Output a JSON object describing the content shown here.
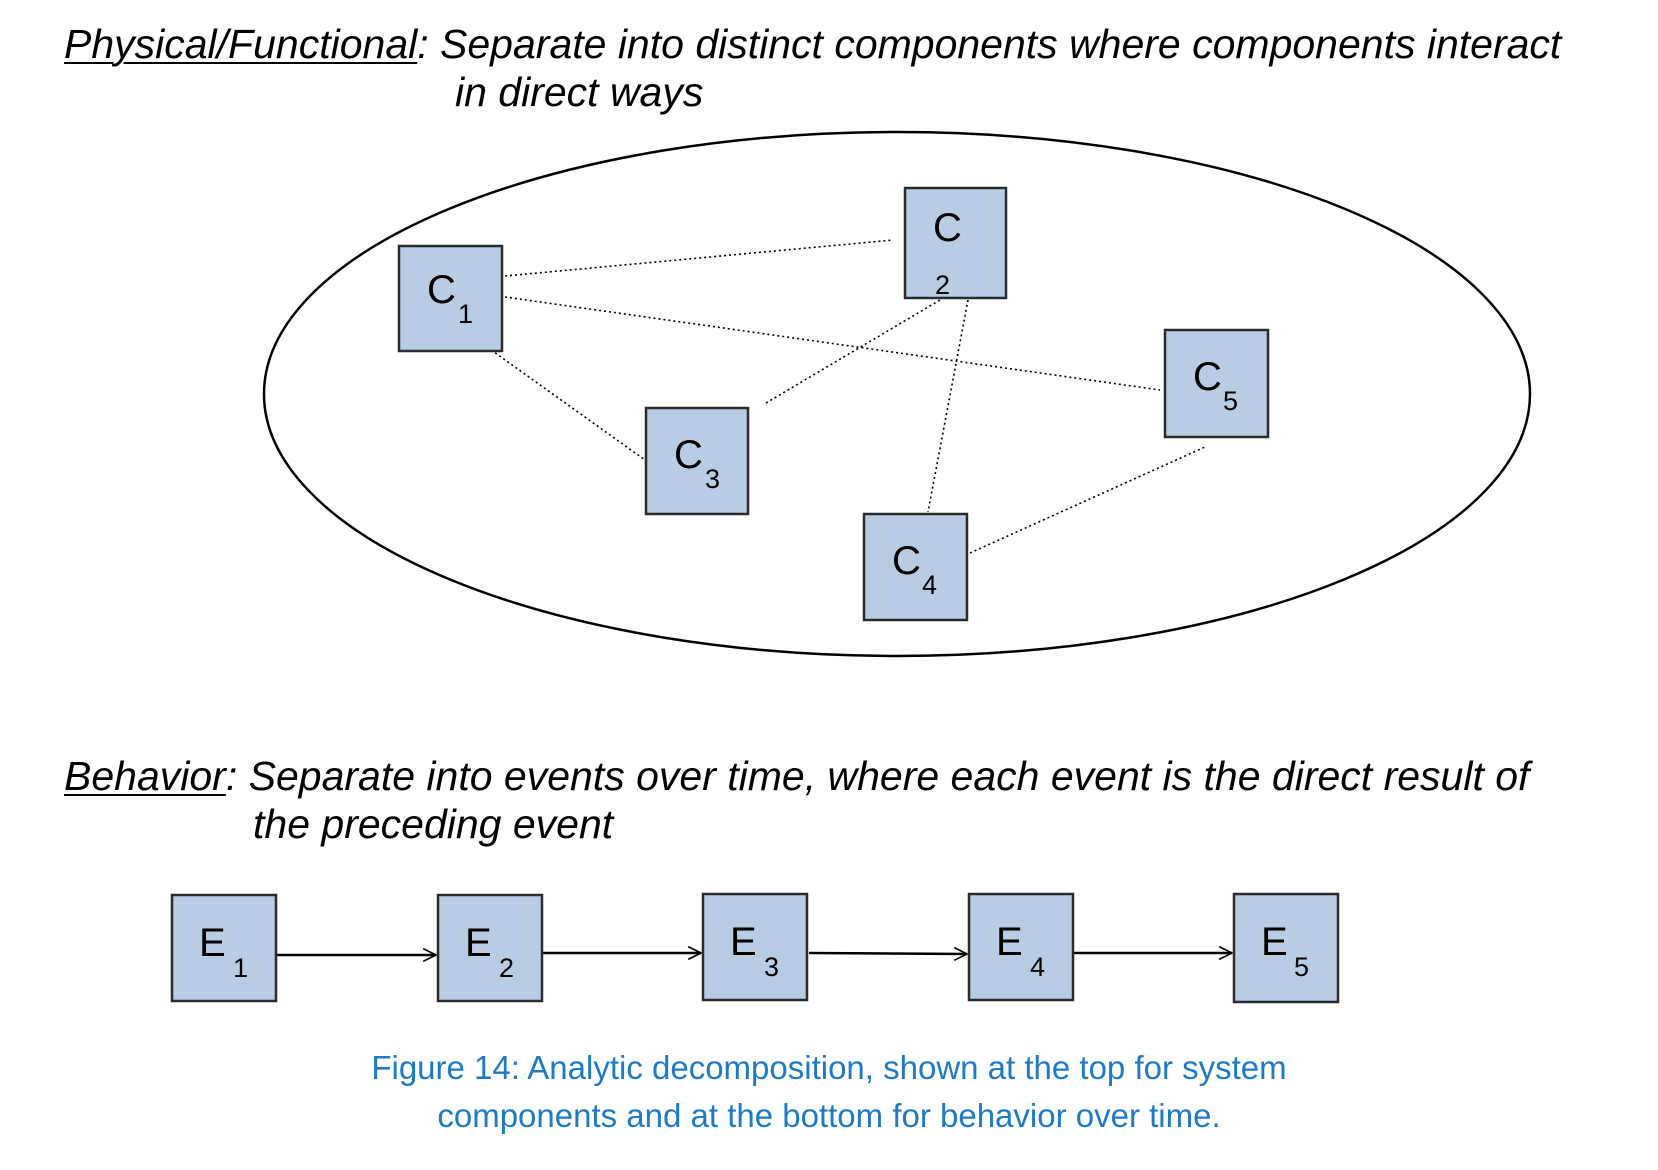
{
  "physical": {
    "label": "Physical/Functional",
    "separator": ":",
    "text_line_1": " Separate into distinct components where components interact",
    "text_line_2": "in direct ways",
    "components": [
      {
        "letter": "C",
        "sub": "1"
      },
      {
        "letter": "C",
        "sub": "2"
      },
      {
        "letter": "C",
        "sub": "3"
      },
      {
        "letter": "C",
        "sub": "4"
      },
      {
        "letter": "C",
        "sub": "5"
      }
    ],
    "connections": [
      [
        "C1",
        "C2"
      ],
      [
        "C1",
        "C5"
      ],
      [
        "C1",
        "C3"
      ],
      [
        "C3",
        "C2"
      ],
      [
        "C2",
        "C4"
      ],
      [
        "C4",
        "C5"
      ]
    ]
  },
  "behavior": {
    "label": "Behavior",
    "separator": ":",
    "text_line_1": " Separate into events over time, where each event is the direct result of",
    "text_line_2": "the preceding event",
    "events": [
      {
        "letter": "E",
        "sub": "1"
      },
      {
        "letter": "E",
        "sub": "2"
      },
      {
        "letter": "E",
        "sub": "3"
      },
      {
        "letter": "E",
        "sub": "4"
      },
      {
        "letter": "E",
        "sub": "5"
      }
    ]
  },
  "caption": {
    "line_1": "Figure 14: Analytic decomposition, shown at the top for system",
    "line_2": "components and at the bottom for behavior over time."
  },
  "colors": {
    "box_fill": "#b8cce4",
    "box_stroke": "#2b2b2b",
    "caption": "#1f7ac4"
  }
}
